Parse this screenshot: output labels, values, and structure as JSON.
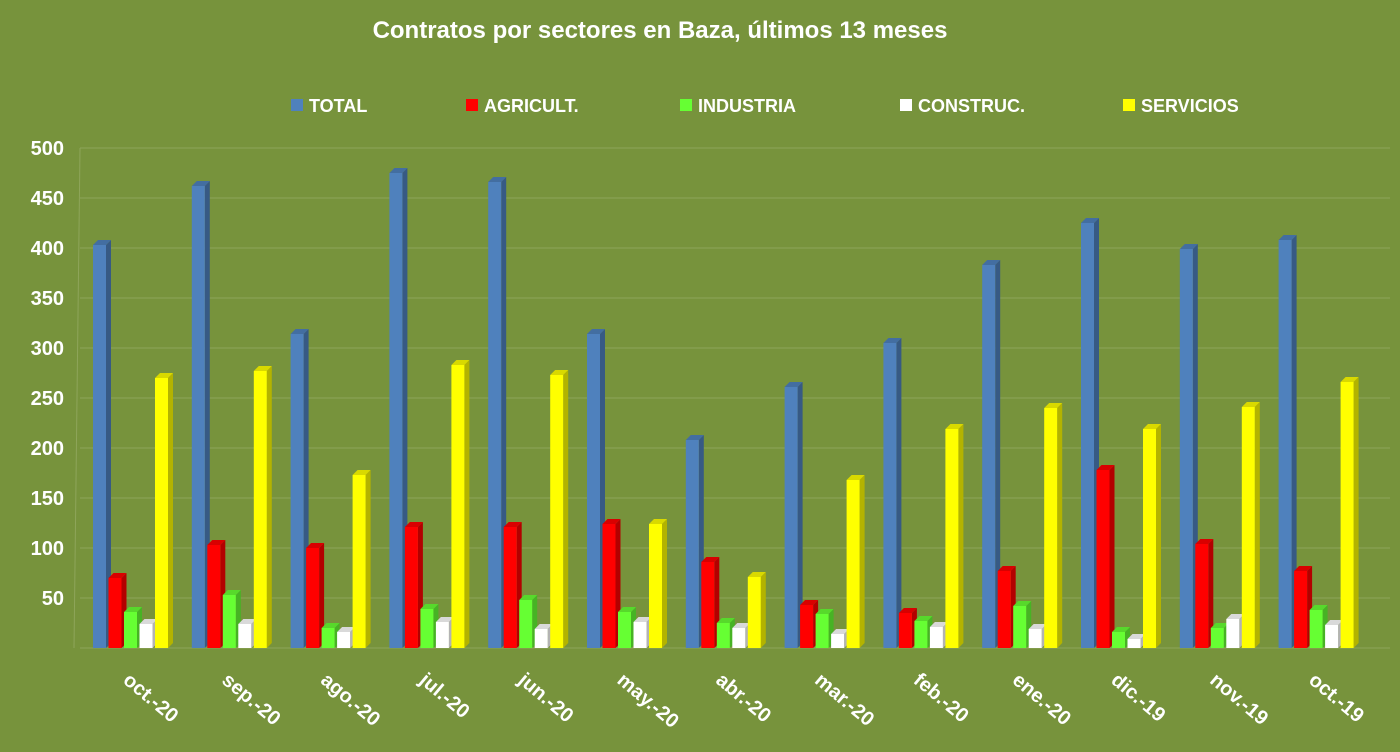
{
  "chart_data": {
    "type": "bar",
    "title": "Contratos por sectores en Baza, últimos 13 meses",
    "categories": [
      "oct.-20",
      "sep.-20",
      "ago.-20",
      "jul.-20",
      "jun.-20",
      "may.-20",
      "abr.-20",
      "mar.-20",
      "feb.-20",
      "ene.-20",
      "dic.-19",
      "nov.-19",
      "oct.-19"
    ],
    "series": [
      {
        "name": "TOTAL",
        "color": "#4f81bd",
        "values": [
          403,
          462,
          314,
          475,
          466,
          314,
          208,
          261,
          305,
          383,
          425,
          399,
          408
        ]
      },
      {
        "name": "AGRICULT.",
        "color": "#ff0000",
        "values": [
          70,
          103,
          100,
          121,
          121,
          124,
          86,
          43,
          35,
          77,
          178,
          104,
          77
        ]
      },
      {
        "name": "INDUSTRIA",
        "color": "#66ff33",
        "values": [
          36,
          53,
          20,
          39,
          48,
          36,
          25,
          34,
          27,
          42,
          16,
          20,
          38
        ]
      },
      {
        "name": "CONSTRUC.",
        "color": "#ffffff",
        "values": [
          24,
          24,
          16,
          26,
          19,
          26,
          20,
          14,
          21,
          19,
          9,
          29,
          23
        ]
      },
      {
        "name": "SERVICIOS",
        "color": "#ffff00",
        "values": [
          270,
          277,
          173,
          283,
          273,
          124,
          71,
          168,
          219,
          240,
          219,
          241,
          266
        ]
      }
    ],
    "yticks": [
      "50",
      "100",
      "150",
      "200",
      "250",
      "300",
      "350",
      "400",
      "450",
      "500"
    ],
    "ylim": [
      0,
      500
    ],
    "grid": true,
    "legend": "top"
  }
}
